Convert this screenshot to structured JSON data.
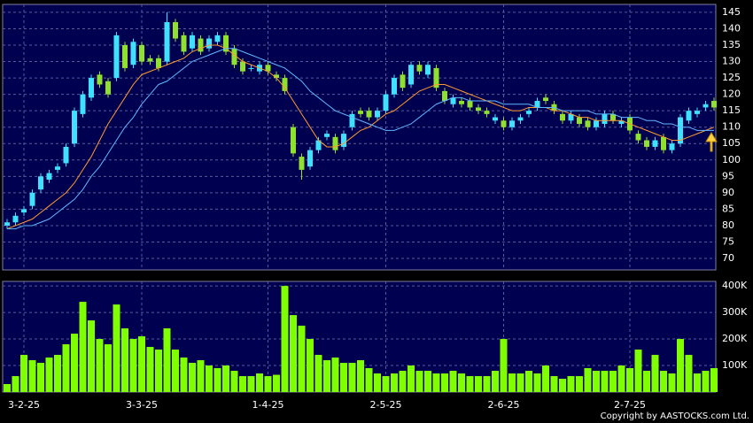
{
  "chart_data": [
    {
      "type": "candlestick",
      "open": [
        80,
        81,
        84,
        86,
        91,
        94,
        97,
        99,
        105,
        114,
        119,
        126,
        124,
        125,
        135,
        129,
        135,
        131,
        131,
        130,
        142,
        138,
        134,
        137,
        134,
        136,
        138,
        134,
        130,
        128,
        127,
        129,
        126,
        125,
        110,
        101,
        98,
        103,
        107,
        107,
        104,
        110,
        115,
        115,
        113,
        115,
        120,
        126,
        123,
        129,
        126,
        128,
        121,
        117,
        118,
        118,
        116,
        115,
        112,
        112,
        110,
        112,
        114,
        116,
        119,
        117,
        114,
        112,
        113,
        112,
        110,
        111,
        114,
        111,
        113,
        108,
        106,
        104,
        107,
        103,
        105,
        112,
        114,
        116,
        118
      ],
      "high": [
        82,
        84,
        86,
        91,
        96,
        97,
        99,
        105,
        116,
        121,
        126,
        127,
        125,
        139,
        136,
        137,
        136,
        132,
        132,
        145,
        143,
        139,
        139,
        138,
        138,
        139,
        139,
        135,
        131,
        129,
        130,
        130,
        127,
        126,
        111,
        102,
        104,
        107,
        109,
        108,
        109,
        115,
        116,
        116,
        116,
        121,
        126,
        127,
        130,
        130,
        130,
        129,
        122,
        120,
        119,
        119,
        117,
        116,
        114,
        113,
        113,
        114,
        116,
        119,
        120,
        118,
        115,
        115,
        114,
        113,
        113,
        115,
        115,
        113,
        114,
        109,
        107,
        107,
        108,
        106,
        114,
        116,
        116,
        118,
        119
      ],
      "low": [
        79,
        80,
        83,
        85,
        90,
        93,
        96,
        98,
        104,
        113,
        118,
        122,
        119,
        124,
        127,
        128,
        129,
        129,
        127,
        129,
        136,
        132,
        133,
        132,
        133,
        135,
        132,
        128,
        126,
        127,
        126,
        126,
        124,
        120,
        101,
        94,
        97,
        102,
        106,
        102,
        103,
        109,
        113,
        112,
        112,
        114,
        119,
        121,
        122,
        126,
        125,
        121,
        117,
        116,
        116,
        115,
        114,
        113,
        111,
        109,
        109,
        111,
        113,
        115,
        117,
        114,
        111,
        111,
        110,
        109,
        109,
        110,
        111,
        110,
        108,
        105,
        103,
        103,
        102,
        102,
        104,
        111,
        113,
        115,
        115
      ],
      "close": [
        81,
        83,
        85,
        90,
        95,
        96,
        98,
        104,
        115,
        120,
        125,
        123,
        120,
        138,
        128,
        136,
        130,
        130,
        128,
        142,
        137,
        133,
        138,
        133,
        137,
        138,
        133,
        129,
        127,
        128,
        129,
        127,
        125,
        121,
        102,
        97,
        103,
        106,
        108,
        103,
        108,
        114,
        114,
        113,
        115,
        120,
        125,
        122,
        129,
        127,
        129,
        122,
        118,
        119,
        117,
        116,
        115,
        114,
        113,
        110,
        112,
        113,
        115,
        118,
        118,
        115,
        112,
        114,
        111,
        110,
        112,
        114,
        112,
        112,
        109,
        106,
        104,
        106,
        103,
        105,
        113,
        115,
        115,
        117,
        116
      ],
      "up_color": "#40e0ff",
      "down_color": "#90e030",
      "overlays": [
        {
          "color": "#ff9a30",
          "values": [
            79,
            80,
            81,
            82,
            84,
            86,
            88,
            90,
            93,
            97,
            101,
            106,
            111,
            115,
            119,
            123,
            126,
            127,
            128,
            129,
            130,
            131,
            133,
            134,
            135,
            135,
            134,
            132,
            130,
            129,
            128,
            127,
            125,
            122,
            118,
            114,
            110,
            106,
            104,
            104,
            105,
            107,
            109,
            110,
            112,
            114,
            115,
            117,
            119,
            121,
            122,
            123,
            123,
            122,
            121,
            120,
            119,
            118,
            117,
            116,
            115,
            115,
            116,
            116,
            116,
            115,
            115,
            114,
            113,
            113,
            112,
            112,
            112,
            112,
            111,
            110,
            109,
            108,
            107,
            106,
            106,
            107,
            108,
            109,
            110
          ]
        },
        {
          "color": "#60b8ff",
          "values": [
            79,
            79,
            80,
            80,
            81,
            82,
            84,
            86,
            88,
            91,
            95,
            98,
            102,
            106,
            110,
            113,
            117,
            120,
            123,
            124,
            126,
            128,
            130,
            131,
            132,
            133,
            134,
            134,
            133,
            132,
            131,
            130,
            129,
            128,
            126,
            124,
            121,
            119,
            117,
            115,
            114,
            113,
            112,
            111,
            110,
            109,
            109,
            110,
            111,
            113,
            115,
            117,
            118,
            119,
            119,
            118,
            118,
            118,
            118,
            117,
            117,
            117,
            117,
            116,
            116,
            116,
            115,
            115,
            115,
            115,
            114,
            114,
            114,
            113,
            113,
            113,
            112,
            112,
            111,
            111,
            110,
            110,
            109,
            109,
            109
          ]
        }
      ],
      "ylim": [
        66.5,
        147.4
      ],
      "yticks": [
        70,
        75,
        80,
        85,
        90,
        95,
        100,
        105,
        110,
        115,
        120,
        125,
        130,
        135,
        140,
        145
      ],
      "grid": true
    },
    {
      "type": "bar",
      "categories": [
        null,
        null,
        "3-2-25",
        null,
        null,
        null,
        null,
        null,
        null,
        null,
        null,
        null,
        null,
        null,
        null,
        null,
        "3-3-25",
        null,
        null,
        null,
        null,
        null,
        null,
        null,
        null,
        null,
        null,
        null,
        null,
        null,
        null,
        "1-4-25",
        null,
        null,
        null,
        null,
        null,
        null,
        null,
        null,
        null,
        null,
        null,
        null,
        null,
        "2-5-25",
        null,
        null,
        null,
        null,
        null,
        null,
        null,
        null,
        null,
        null,
        null,
        null,
        null,
        "2-6-25",
        null,
        null,
        null,
        null,
        null,
        null,
        null,
        null,
        null,
        null,
        null,
        null,
        null,
        null,
        "2-7-25",
        null,
        null,
        null,
        null,
        null,
        null,
        null,
        null,
        null,
        null
      ],
      "values": [
        30000,
        60000,
        140000,
        120000,
        110000,
        130000,
        140000,
        180000,
        220000,
        340000,
        270000,
        200000,
        180000,
        330000,
        240000,
        200000,
        210000,
        170000,
        160000,
        240000,
        160000,
        130000,
        110000,
        120000,
        100000,
        90000,
        100000,
        80000,
        60000,
        60000,
        70000,
        60000,
        65000,
        400000,
        290000,
        250000,
        200000,
        140000,
        120000,
        130000,
        110000,
        110000,
        120000,
        90000,
        70000,
        60000,
        70000,
        80000,
        100000,
        80000,
        80000,
        70000,
        70000,
        80000,
        70000,
        60000,
        60000,
        60000,
        80000,
        200000,
        70000,
        70000,
        80000,
        70000,
        100000,
        60000,
        50000,
        60000,
        60000,
        90000,
        80000,
        80000,
        80000,
        100000,
        90000,
        160000,
        80000,
        140000,
        80000,
        70000,
        200000,
        140000,
        70000,
        80000,
        90000
      ],
      "color": "#80ff00",
      "ylim": [
        0,
        417000
      ],
      "yticks": [
        {
          "value": 100000,
          "label": "100K"
        },
        {
          "value": 200000,
          "label": "200K"
        },
        {
          "value": 300000,
          "label": "300K"
        },
        {
          "value": 400000,
          "label": "400K"
        }
      ],
      "grid": true
    }
  ],
  "footer": "Copyright by AASTOCKS.com Ltd."
}
